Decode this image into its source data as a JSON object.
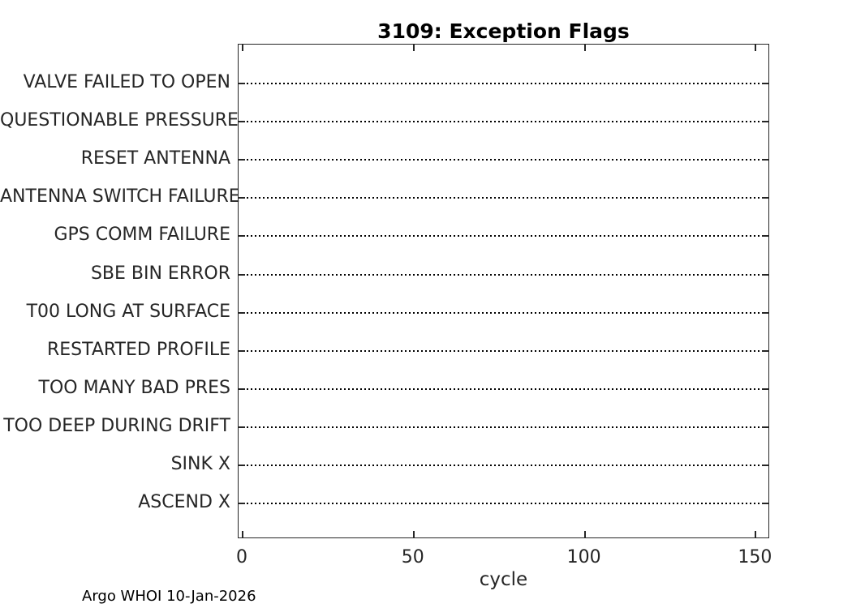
{
  "title": "3109: Exception Flags",
  "footer": "Argo WHOI 10-Jan-2026",
  "colors": {
    "background": "#ffffff",
    "axis": "#262626",
    "tick_label_text": "#262626",
    "title_text": "#000000",
    "baseline_dotted": "#000000"
  },
  "chart_data": {
    "type": "scatter",
    "title": "3109: Exception Flags",
    "xlabel": "cycle",
    "ylabel": "",
    "x_ticks": [
      0,
      50,
      100,
      150
    ],
    "xlim": [
      -1,
      155
    ],
    "categories_top_to_bottom": [
      "VALVE FAILED TO OPEN",
      "QUESTIONABLE PRESSURE",
      "RESET ANTENNA",
      "ANTENNA SWITCH FAILURE",
      "GPS COMM FAILURE",
      "SBE BIN ERROR",
      "T00 LONG AT SURFACE",
      "RESTARTED PROFILE",
      "TOO MANY BAD PRES",
      "TOO DEEP DURING DRIFT",
      "SINK X",
      "ASCEND X"
    ],
    "points": [],
    "grid": "dotted horizontal baseline across full x-range for each category; no data markers plotted",
    "legend": null,
    "layout": {
      "box": "on",
      "tick_direction": "in",
      "ticks_mirrored_top_and_right": true
    }
  }
}
